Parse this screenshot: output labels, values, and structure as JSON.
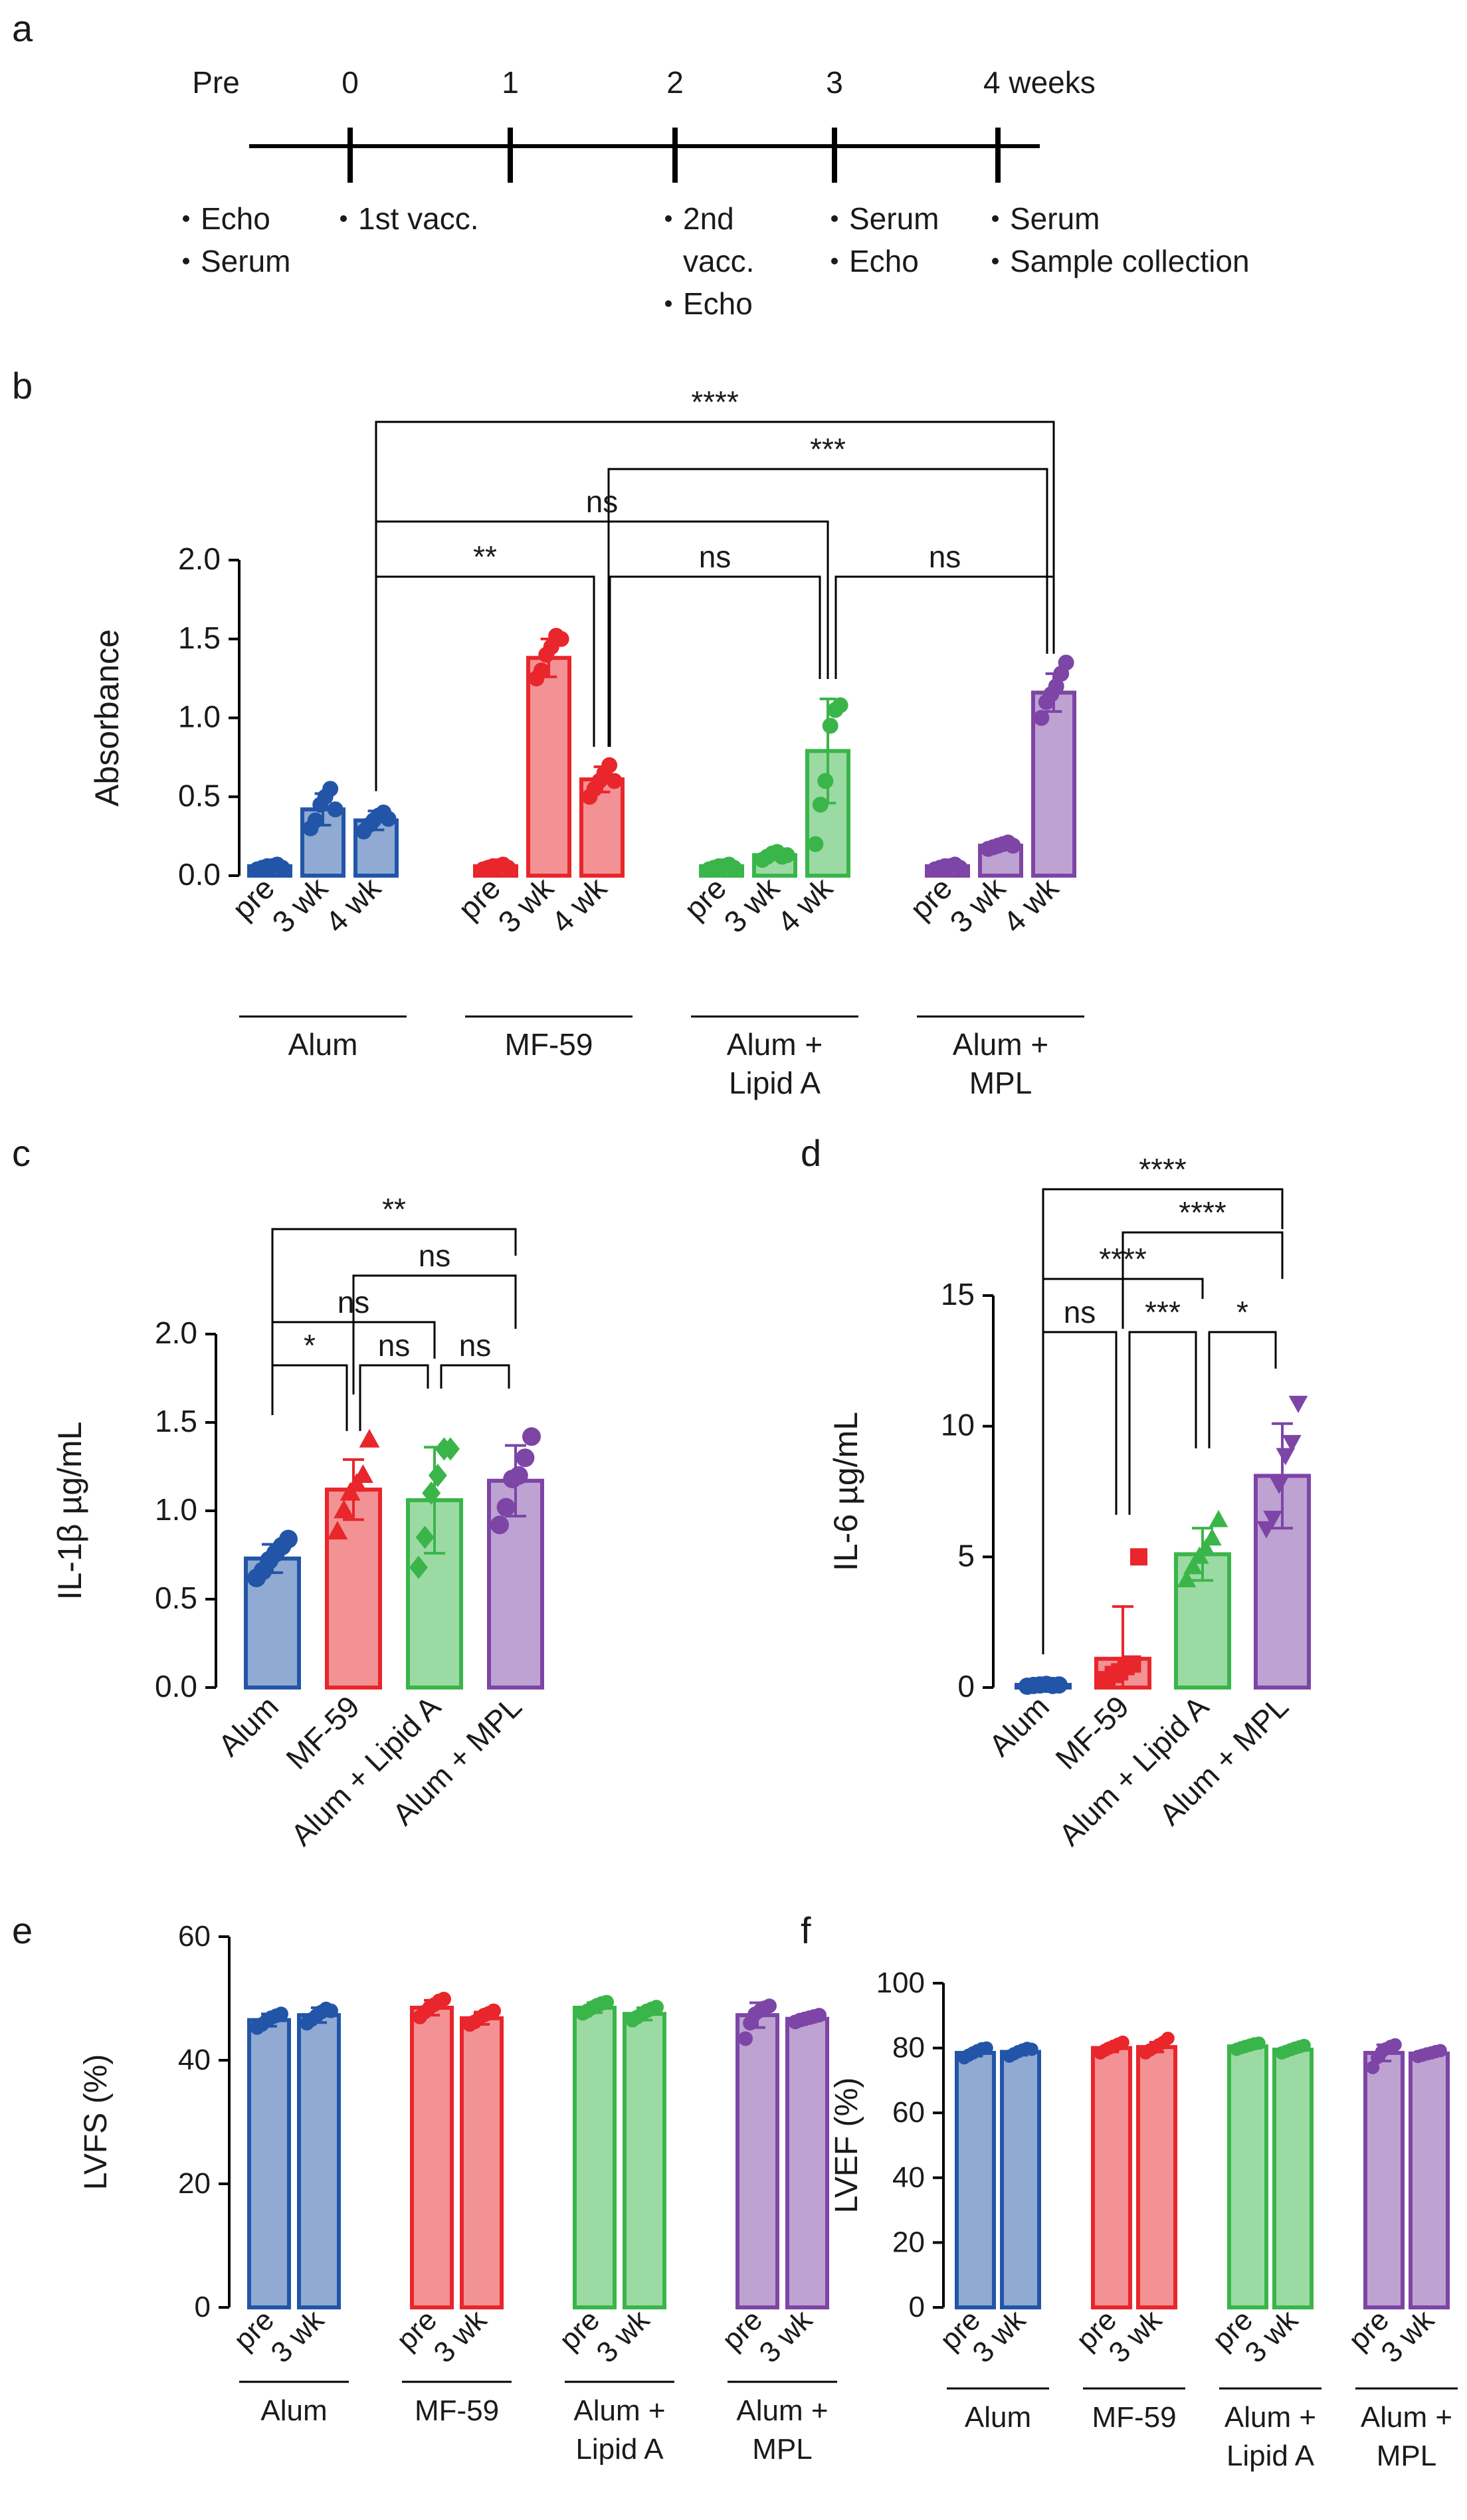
{
  "panel_letters": {
    "a": "a",
    "b": "b",
    "c": "c",
    "d": "d",
    "e": "e",
    "f": "f"
  },
  "timeline": {
    "ticks": [
      "0",
      "1",
      "2",
      "3",
      "4 weeks"
    ],
    "pre_label": "Pre",
    "events": [
      {
        "week": "pre",
        "items": [
          "Echo",
          "Serum"
        ]
      },
      {
        "week": 0,
        "items": [
          "1st vacc."
        ]
      },
      {
        "week": 2,
        "items": [
          "2nd",
          "vacc.",
          "Echo"
        ]
      },
      {
        "week": 3,
        "items": [
          "Serum",
          "Echo"
        ]
      },
      {
        "week": 4,
        "items": [
          "Serum",
          "Sample collection"
        ]
      }
    ]
  },
  "colors": {
    "Alum": "#2255a8",
    "MF-59": "#e8262b",
    "Alum + Lipid A": "#3ab54a",
    "Alum + MPL": "#7d45a6"
  },
  "chart_data": [
    {
      "panel": "b",
      "type": "bar",
      "ylabel": "Absorbance",
      "ylim": [
        0,
        2.0
      ],
      "yticks": [
        "0.0",
        "0.5",
        "1.0",
        "1.5",
        "2.0"
      ],
      "categories": [
        "pre",
        "3 wk",
        "4 wk"
      ],
      "groups": [
        {
          "name": "Alum",
          "label_lines": [
            "Alum"
          ],
          "values": [
            0.06,
            0.42,
            0.35
          ],
          "sd": [
            0.02,
            0.1,
            0.06
          ]
        },
        {
          "name": "MF-59",
          "label_lines": [
            "MF-59"
          ],
          "values": [
            0.06,
            1.38,
            0.61
          ],
          "sd": [
            0.02,
            0.12,
            0.08
          ]
        },
        {
          "name": "Alum + Lipid A",
          "label_lines": [
            "Alum +",
            "Lipid A"
          ],
          "values": [
            0.06,
            0.13,
            0.79
          ],
          "sd": [
            0.02,
            0.03,
            0.33
          ]
        },
        {
          "name": "Alum + MPL",
          "label_lines": [
            "Alum +",
            "MPL"
          ],
          "values": [
            0.06,
            0.19,
            1.16
          ],
          "sd": [
            0.02,
            0.02,
            0.12
          ]
        }
      ],
      "points": [
        [
          [
            0.04,
            0.05,
            0.06,
            0.06,
            0.07,
            0.05
          ],
          [
            0.3,
            0.35,
            0.45,
            0.5,
            0.55,
            0.42
          ],
          [
            0.28,
            0.32,
            0.35,
            0.38,
            0.4,
            0.36
          ]
        ],
        [
          [
            0.04,
            0.05,
            0.06,
            0.06,
            0.07,
            0.05
          ],
          [
            1.25,
            1.3,
            1.4,
            1.45,
            1.52,
            1.5
          ],
          [
            0.5,
            0.55,
            0.6,
            0.65,
            0.7,
            0.6
          ]
        ],
        [
          [
            0.04,
            0.05,
            0.06,
            0.06,
            0.07,
            0.05
          ],
          [
            0.1,
            0.12,
            0.14,
            0.15,
            0.12,
            0.13
          ],
          [
            0.2,
            0.45,
            0.6,
            0.95,
            1.05,
            1.08
          ]
        ],
        [
          [
            0.04,
            0.05,
            0.06,
            0.06,
            0.07,
            0.05
          ],
          [
            0.17,
            0.18,
            0.19,
            0.2,
            0.21,
            0.19
          ],
          [
            1.0,
            1.1,
            1.15,
            1.2,
            1.28,
            1.35
          ]
        ]
      ],
      "significance": [
        "****",
        "***",
        "ns",
        "**",
        "ns",
        "ns"
      ]
    },
    {
      "panel": "c",
      "type": "bar",
      "ylabel": "IL-1β µg/mL",
      "ylim": [
        0,
        2.0
      ],
      "yticks": [
        "0.0",
        "0.5",
        "1.0",
        "1.5",
        "2.0"
      ],
      "categories": [
        "Alum",
        "MF-59",
        "Alum + Lipid A",
        "Alum + MPL"
      ],
      "values": [
        0.73,
        1.12,
        1.06,
        1.17
      ],
      "sd": [
        0.08,
        0.17,
        0.3,
        0.2
      ],
      "markers": [
        "circle",
        "triangle",
        "diamond",
        "circle"
      ],
      "points": [
        [
          0.62,
          0.66,
          0.72,
          0.76,
          0.8,
          0.84
        ],
        [
          0.88,
          1.0,
          1.1,
          1.15,
          1.2,
          1.4
        ],
        [
          0.68,
          0.85,
          1.1,
          1.2,
          1.35,
          1.35
        ],
        [
          0.92,
          1.02,
          1.18,
          1.2,
          1.3,
          1.42
        ]
      ],
      "significance": [
        "**",
        "ns",
        "ns",
        "*",
        "ns",
        "ns"
      ]
    },
    {
      "panel": "d",
      "type": "bar",
      "ylabel": "IL-6 µg/mL",
      "ylim": [
        0,
        15
      ],
      "yticks": [
        "0",
        "5",
        "10",
        "15"
      ],
      "categories": [
        "Alum",
        "MF-59",
        "Alum + Lipid A",
        "Alum + MPL"
      ],
      "values": [
        0.1,
        1.1,
        5.1,
        8.1
      ],
      "sd": [
        0.05,
        2.0,
        1.0,
        2.0
      ],
      "markers": [
        "circle",
        "square",
        "triangle",
        "triangle-down"
      ],
      "points": [
        [
          0.05,
          0.08,
          0.1,
          0.12,
          0.08,
          0.1
        ],
        [
          0.3,
          0.5,
          0.6,
          0.8,
          0.9,
          5.0
        ],
        [
          4.1,
          4.6,
          5.0,
          5.3,
          5.7,
          6.4
        ],
        [
          6.1,
          6.5,
          7.8,
          8.9,
          9.4,
          10.9
        ]
      ],
      "significance": [
        "****",
        "****",
        "****",
        "ns",
        "***",
        "*"
      ]
    },
    {
      "panel": "e",
      "type": "bar",
      "ylabel": "LVFS (%)",
      "ylim": [
        0,
        60
      ],
      "yticks": [
        "0",
        "20",
        "40",
        "60"
      ],
      "categories": [
        "pre",
        "3 wk"
      ],
      "groups": [
        {
          "name": "Alum",
          "label_lines": [
            "Alum"
          ],
          "values": [
            46.5,
            47.3
          ],
          "sd": [
            1.0,
            1.2
          ]
        },
        {
          "name": "MF-59",
          "label_lines": [
            "MF-59"
          ],
          "values": [
            48.5,
            46.8
          ],
          "sd": [
            1.2,
            1.0
          ]
        },
        {
          "name": "Alum + Lipid A",
          "label_lines": [
            "Alum +",
            "Lipid A"
          ],
          "values": [
            48.5,
            47.5
          ],
          "sd": [
            0.8,
            1.0
          ]
        },
        {
          "name": "Alum + MPL",
          "label_lines": [
            "Alum +",
            "MPL"
          ],
          "values": [
            47.3,
            46.7
          ],
          "sd": [
            2.0,
            0.5
          ]
        }
      ],
      "points": [
        [
          [
            45.3,
            45.8,
            46.4,
            46.9,
            47.2,
            47.5
          ],
          [
            46.0,
            46.6,
            47.2,
            47.8,
            48.3,
            48.0
          ]
        ],
        [
          [
            47.0,
            47.8,
            48.5,
            49.0,
            49.6,
            49.9
          ],
          [
            45.8,
            46.2,
            46.8,
            47.3,
            47.6,
            48.0
          ]
        ],
        [
          [
            47.6,
            48.0,
            48.5,
            48.9,
            49.2,
            49.4
          ],
          [
            46.5,
            47.0,
            47.5,
            48.0,
            48.3,
            48.6
          ]
        ],
        [
          [
            43.5,
            46.0,
            47.5,
            48.0,
            48.5,
            48.8
          ],
          [
            46.2,
            46.5,
            46.7,
            46.9,
            47.1,
            47.3
          ]
        ]
      ]
    },
    {
      "panel": "f",
      "type": "bar",
      "ylabel": "LVEF (%)",
      "ylim": [
        0,
        100
      ],
      "yticks": [
        "0",
        "20",
        "40",
        "60",
        "80",
        "100"
      ],
      "categories": [
        "pre",
        "3 wk"
      ],
      "groups": [
        {
          "name": "Alum",
          "label_lines": [
            "Alum"
          ],
          "values": [
            78.5,
            78.8
          ],
          "sd": [
            1.0,
            1.0
          ]
        },
        {
          "name": "MF-59",
          "label_lines": [
            "MF-59"
          ],
          "values": [
            80.0,
            80.3
          ],
          "sd": [
            1.2,
            1.5
          ]
        },
        {
          "name": "Alum + Lipid A",
          "label_lines": [
            "Alum +",
            "Lipid A"
          ],
          "values": [
            80.5,
            79.5
          ],
          "sd": [
            0.8,
            0.8
          ]
        },
        {
          "name": "Alum + MPL",
          "label_lines": [
            "Alum +",
            "MPL"
          ],
          "values": [
            78.5,
            78.3
          ],
          "sd": [
            2.5,
            0.6
          ]
        }
      ],
      "points": [
        [
          [
            77.0,
            77.8,
            78.5,
            79.2,
            79.8,
            80.0
          ],
          [
            77.5,
            78.2,
            78.9,
            79.4,
            79.9,
            79.6
          ]
        ],
        [
          [
            78.5,
            79.3,
            80.0,
            80.6,
            81.2,
            81.8
          ],
          [
            78.5,
            79.4,
            80.2,
            81.0,
            81.8,
            83.0
          ]
        ],
        [
          [
            79.6,
            80.1,
            80.5,
            80.9,
            81.3,
            81.5
          ],
          [
            78.5,
            79.0,
            79.5,
            80.0,
            80.4,
            80.8
          ]
        ],
        [
          [
            74.0,
            77.0,
            78.8,
            79.8,
            80.5,
            81.0
          ],
          [
            77.4,
            77.8,
            78.2,
            78.5,
            78.9,
            79.2
          ]
        ]
      ]
    }
  ]
}
